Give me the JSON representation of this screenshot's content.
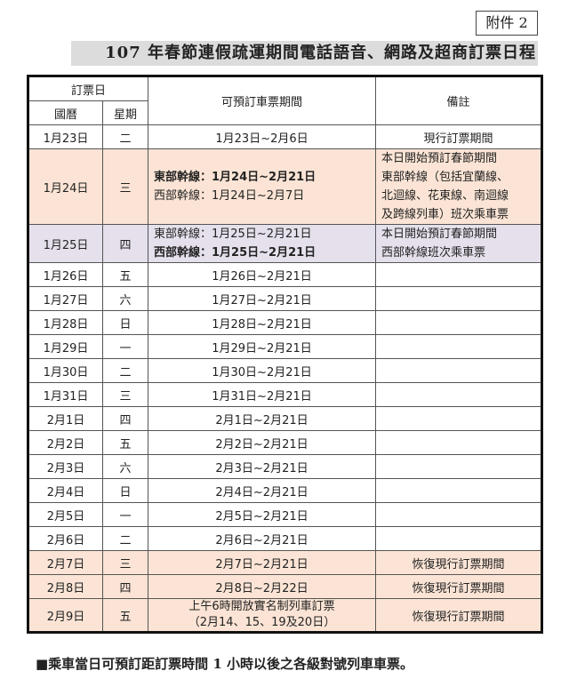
{
  "attachment": "附件 2",
  "title": "107 年春節連假疏運期間電話語音、網路及超商訂票日程",
  "header": {
    "booking_day": "訂票日",
    "calendar": "國曆",
    "weekday": "星期",
    "period": "可預訂車票期間",
    "remarks": "備註"
  },
  "colors": {
    "peach": "#fbe4d5",
    "lavender": "#e5e0ec",
    "title_bg": "#dcdcdc"
  },
  "rows": [
    {
      "date": "1月23日",
      "wd": "二",
      "period": "1月23日~2月6日",
      "note": "現行訂票期間"
    },
    {
      "date": "1月24日",
      "wd": "三",
      "east": "東部幹線：1月24日~2月21日",
      "west": "西部幹線：1月24日~2月7日",
      "note_lines": [
        "本日開始預訂春節期間",
        "東部幹線（包括宜蘭線、",
        "北迴線、花東線、南迴線",
        "及跨線列車）班次乘車票"
      ]
    },
    {
      "date": "1月25日",
      "wd": "四",
      "east": "東部幹線：1月25日~2月21日",
      "west": "西部幹線：1月25日~2月21日",
      "note_lines": [
        "本日開始預訂春節期間",
        "西部幹線班次乘車票"
      ]
    },
    {
      "date": "1月26日",
      "wd": "五",
      "period": "1月26日~2月21日",
      "note": ""
    },
    {
      "date": "1月27日",
      "wd": "六",
      "period": "1月27日~2月21日",
      "note": ""
    },
    {
      "date": "1月28日",
      "wd": "日",
      "period": "1月28日~2月21日",
      "note": ""
    },
    {
      "date": "1月29日",
      "wd": "一",
      "period": "1月29日~2月21日",
      "note": ""
    },
    {
      "date": "1月30日",
      "wd": "二",
      "period": "1月30日~2月21日",
      "note": ""
    },
    {
      "date": "1月31日",
      "wd": "三",
      "period": "1月31日~2月21日",
      "note": ""
    },
    {
      "date": "2月1日",
      "wd": "四",
      "period": "2月1日~2月21日",
      "note": ""
    },
    {
      "date": "2月2日",
      "wd": "五",
      "period": "2月2日~2月21日",
      "note": ""
    },
    {
      "date": "2月3日",
      "wd": "六",
      "period": "2月3日~2月21日",
      "note": ""
    },
    {
      "date": "2月4日",
      "wd": "日",
      "period": "2月4日~2月21日",
      "note": ""
    },
    {
      "date": "2月5日",
      "wd": "一",
      "period": "2月5日~2月21日",
      "note": ""
    },
    {
      "date": "2月6日",
      "wd": "二",
      "period": "2月6日~2月21日",
      "note": ""
    },
    {
      "date": "2月7日",
      "wd": "三",
      "period": "2月7日~2月21日",
      "note": "恢復現行訂票期間"
    },
    {
      "date": "2月8日",
      "wd": "四",
      "period": "2月8日~2月22日",
      "note": "恢復現行訂票期間"
    },
    {
      "date": "2月9日",
      "wd": "五",
      "period_lines": [
        "上午6時開放實名制列車訂票",
        "（2月14、15、19及20日）"
      ],
      "note": "恢復現行訂票期間"
    }
  ],
  "footer": "■乘車當日可預訂距訂票時間 1 小時以後之各級對號列車車票。"
}
